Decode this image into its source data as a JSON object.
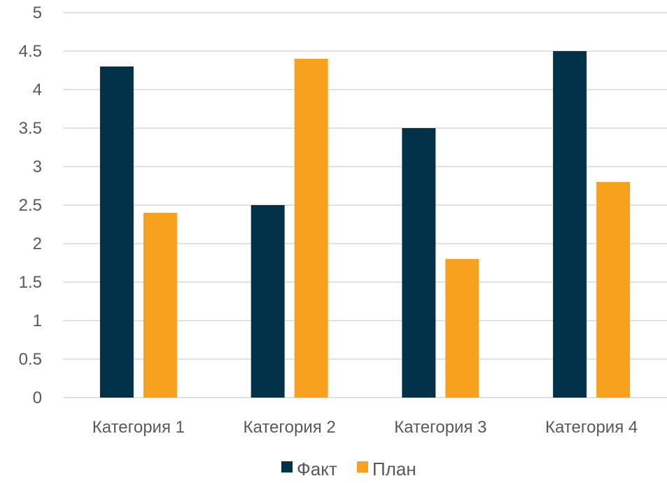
{
  "chart_data": {
    "type": "bar",
    "title": "",
    "xlabel": "",
    "ylabel": "",
    "categories": [
      "Категория 1",
      "Категория 2",
      "Категория 3",
      "Категория 4"
    ],
    "series": [
      {
        "name": "Факт",
        "values": [
          4.3,
          2.5,
          3.5,
          4.5
        ],
        "color": "#02324a"
      },
      {
        "name": "План",
        "values": [
          2.4,
          4.4,
          1.8,
          2.8
        ],
        "color": "#f7a11f"
      }
    ],
    "ylim": [
      0,
      5
    ],
    "yticks": [
      "0",
      "0.5",
      "1",
      "1.5",
      "2",
      "2.5",
      "3",
      "3.5",
      "4",
      "4.5",
      "5"
    ],
    "ytick_values": [
      0,
      0.5,
      1,
      1.5,
      2,
      2.5,
      3,
      3.5,
      4,
      4.5,
      5
    ],
    "grid": true,
    "legend_position": "bottom"
  }
}
